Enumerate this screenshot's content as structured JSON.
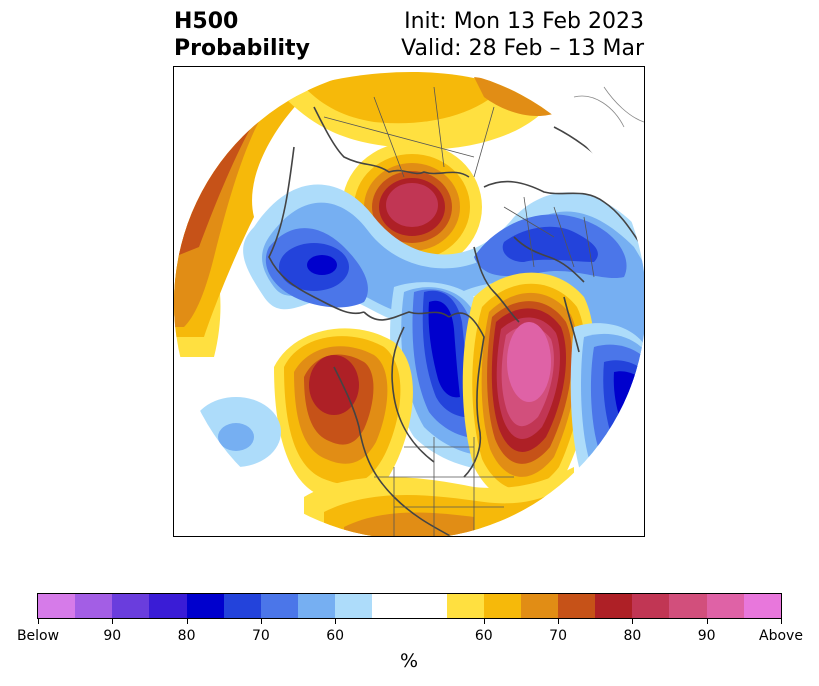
{
  "title": {
    "left_line1": "H500",
    "left_line2": "Probability",
    "right_line1": "Init: Mon 13 Feb 2023",
    "right_line2": "Valid: 28 Feb – 13 Mar"
  },
  "colorbar": {
    "unit": "%",
    "colors": [
      "#d67be9",
      "#a35ee5",
      "#6a3ddd",
      "#3a1cd6",
      "#0000cd",
      "#2343db",
      "#4b76e9",
      "#76aff2",
      "#addcfa",
      "#ffffff",
      "#ffe040",
      "#f6b90a",
      "#e18d15",
      "#c65218",
      "#ae2026",
      "#c13654",
      "#d24f7c",
      "#df62a6",
      "#e877dc"
    ],
    "tick_labels": [
      "Below",
      "90",
      "80",
      "70",
      "60",
      "60",
      "70",
      "80",
      "90",
      "Above"
    ]
  }
}
